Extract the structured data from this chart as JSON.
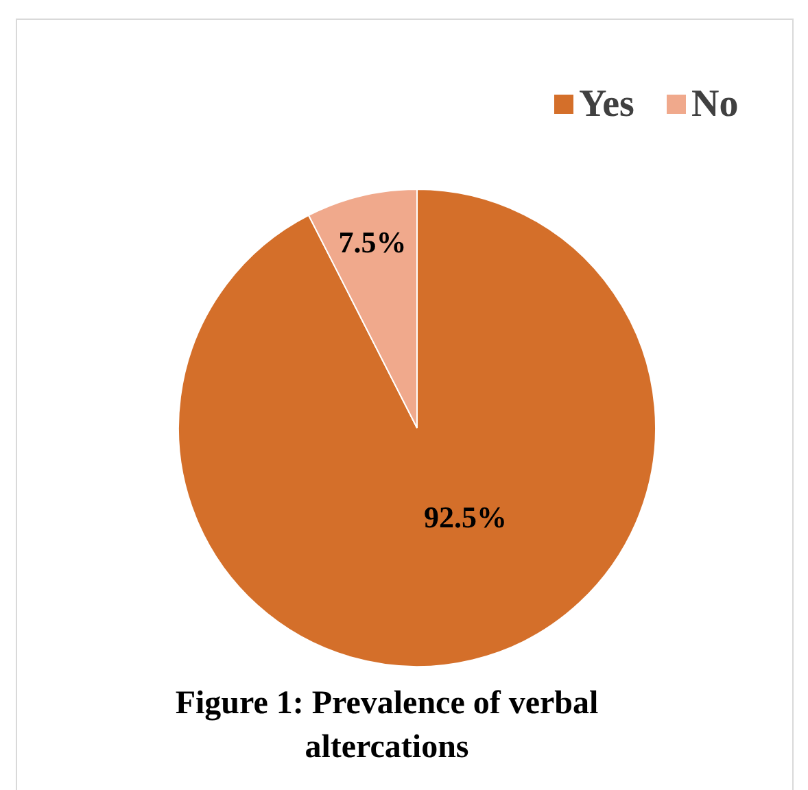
{
  "chart_data": {
    "type": "pie",
    "title": "Figure 1: Prevalence of verbal altercations",
    "categories": [
      "Yes",
      "No"
    ],
    "values": [
      92.5,
      7.5
    ],
    "colors": [
      "#d46f2a",
      "#f0a98c"
    ],
    "value_labels": [
      "92.5%",
      "7.5%"
    ],
    "legend": "top right"
  }
}
